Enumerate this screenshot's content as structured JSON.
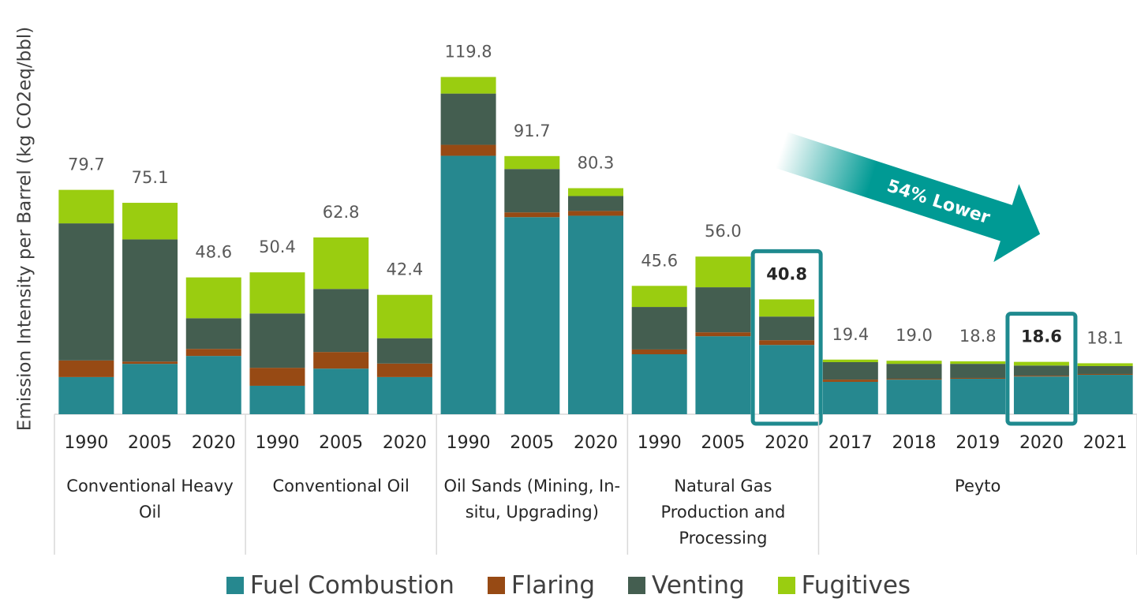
{
  "chart_data": {
    "type": "stacked_bar",
    "y_label": "Emission Intensity per Barrel (kg CO2eq/bbl)",
    "groups": [
      {
        "label": "Conventional Heavy Oil",
        "categories": [
          "1990",
          "2005",
          "2020"
        ]
      },
      {
        "label": "Conventional Oil",
        "categories": [
          "1990",
          "2005",
          "2020"
        ]
      },
      {
        "label": "Oil Sands (Mining, In-situ, Upgrading)",
        "categories": [
          "1990",
          "2005",
          "2020"
        ]
      },
      {
        "label": "Natural Gas Production and Processing",
        "categories": [
          "1990",
          "2005",
          "2020"
        ]
      },
      {
        "label": "Peyto",
        "categories": [
          "2017",
          "2018",
          "2019",
          "2020",
          "2021"
        ]
      }
    ],
    "series": [
      {
        "name": "Fuel Combustion",
        "color": "#26888f",
        "values": [
          13.2,
          17.9,
          20.7,
          10.1,
          16.2,
          13.2,
          91.8,
          70.0,
          70.5,
          21.3,
          27.7,
          24.6,
          11.5,
          12.3,
          12.6,
          13.4,
          14.0
        ]
      },
      {
        "name": "Flaring",
        "color": "#974a14",
        "values": [
          5.9,
          0.8,
          2.5,
          6.4,
          5.9,
          4.8,
          3.9,
          1.7,
          1.7,
          1.7,
          1.4,
          1.7,
          0.8,
          0.3,
          0.3,
          0.3,
          0.3
        ]
      },
      {
        "name": "Venting",
        "color": "#445e50",
        "values": [
          48.7,
          43.4,
          10.9,
          19.3,
          22.4,
          9.0,
          18.2,
          15.4,
          5.3,
          15.1,
          16.0,
          8.4,
          6.2,
          5.3,
          5.0,
          3.6,
          2.8
        ]
      },
      {
        "name": "Fugitives",
        "color": "#9acd10",
        "values": [
          11.9,
          13.0,
          14.5,
          14.6,
          18.3,
          15.4,
          5.9,
          4.6,
          2.8,
          7.5,
          10.9,
          6.1,
          0.9,
          1.1,
          0.9,
          1.3,
          1.0
        ]
      }
    ],
    "totals": [
      79.7,
      75.1,
      48.6,
      50.4,
      62.8,
      42.4,
      119.8,
      91.7,
      80.3,
      45.6,
      56.0,
      40.8,
      19.4,
      19.0,
      18.8,
      18.6,
      18.1
    ],
    "total_labels": [
      "79.7",
      "75.1",
      "48.6",
      "50.4",
      "62.8",
      "42.4",
      "119.8",
      "91.7",
      "80.3",
      "45.6",
      "56.0",
      "40.8",
      "19.4",
      "19.0",
      "18.8",
      "18.6",
      "18.1"
    ],
    "highlight": [
      11,
      15
    ],
    "highlight_color": "#1f8a8f",
    "annotation": "54% Lower",
    "ylim": [
      0,
      125
    ]
  }
}
